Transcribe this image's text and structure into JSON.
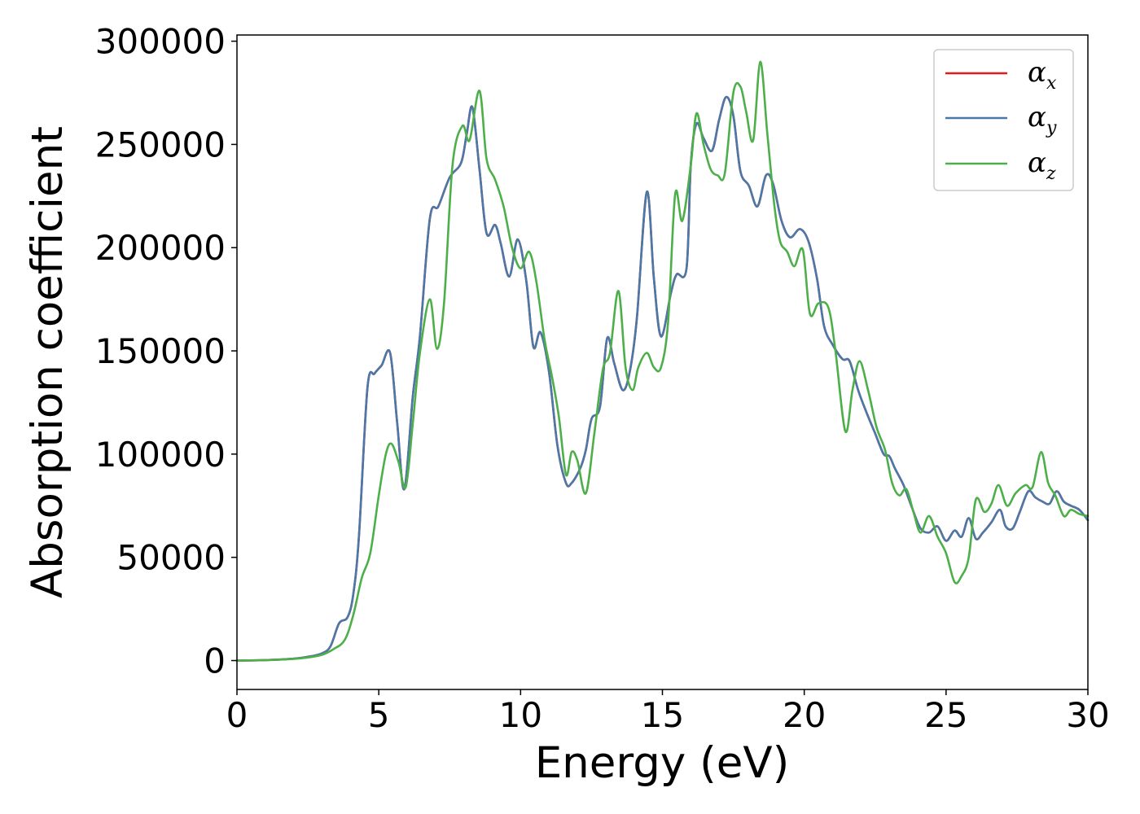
{
  "chart_data": {
    "type": "line",
    "title": "",
    "xlabel": "Energy (eV)",
    "ylabel": "Absorption coefficient",
    "xlim": [
      0,
      30
    ],
    "ylim": [
      -14000,
      303000
    ],
    "xticks": [
      0,
      5,
      10,
      15,
      20,
      25,
      30
    ],
    "xtick_labels": [
      "0",
      "5",
      "10",
      "15",
      "20",
      "25",
      "30"
    ],
    "yticks": [
      0,
      50000,
      100000,
      150000,
      200000,
      250000,
      300000
    ],
    "ytick_labels": [
      "0",
      "50000",
      "100000",
      "150000",
      "200000",
      "250000",
      "300000"
    ],
    "grid": false,
    "legend_position": "top-right",
    "series": [
      {
        "name": "α_x",
        "label_base": "α",
        "label_sub": "x",
        "color": "#e41a1c",
        "x": [
          0,
          1,
          2,
          2.5,
          3,
          3.3,
          3.6,
          3.9,
          4.1,
          4.3,
          4.6,
          4.85,
          5.1,
          5.4,
          5.65,
          5.9,
          6.2,
          6.45,
          6.8,
          7.1,
          7.5,
          7.9,
          8.1,
          8.3,
          8.55,
          8.8,
          9.1,
          9.3,
          9.6,
          9.9,
          10.2,
          10.45,
          10.7,
          11.0,
          11.3,
          11.6,
          11.8,
          12.1,
          12.3,
          12.5,
          12.8,
          13.05,
          13.3,
          13.6,
          13.85,
          14.1,
          14.45,
          14.7,
          14.95,
          15.3,
          15.5,
          15.85,
          16.0,
          16.2,
          16.45,
          16.75,
          17.0,
          17.25,
          17.5,
          17.75,
          18.05,
          18.35,
          18.65,
          18.9,
          19.2,
          19.5,
          19.85,
          20.15,
          20.45,
          20.7,
          21.0,
          21.35,
          21.6,
          21.9,
          22.2,
          22.5,
          22.8,
          23.0,
          23.2,
          23.5,
          23.8,
          24.1,
          24.4,
          24.7,
          25.0,
          25.3,
          25.55,
          25.8,
          26.05,
          26.3,
          26.6,
          26.9,
          27.1,
          27.35,
          27.6,
          27.9,
          28.15,
          28.4,
          28.65,
          28.9,
          29.15,
          29.4,
          29.7,
          30.0
        ],
        "y": [
          0,
          200,
          900,
          1800,
          3500,
          7000,
          18000,
          21000,
          32000,
          60000,
          132000,
          139000,
          143000,
          149000,
          115000,
          83000,
          128000,
          157000,
          214000,
          220000,
          234000,
          241000,
          255000,
          268000,
          238000,
          207000,
          211000,
          202000,
          186000,
          204000,
          184000,
          152000,
          159000,
          140000,
          104000,
          86000,
          86000,
          93000,
          102000,
          117000,
          123000,
          156000,
          144000,
          131000,
          140000,
          166000,
          227000,
          185000,
          157000,
          178000,
          187000,
          190000,
          240000,
          260000,
          253000,
          247000,
          262000,
          273000,
          264000,
          237000,
          230000,
          220000,
          235000,
          231000,
          213000,
          205000,
          209000,
          203000,
          185000,
          162000,
          153000,
          146000,
          145000,
          131000,
          120000,
          110000,
          100000,
          99000,
          93000,
          85000,
          74000,
          64000,
          62000,
          65000,
          58000,
          63000,
          60000,
          69000,
          59000,
          62000,
          67000,
          73000,
          65000,
          64000,
          72000,
          82000,
          79000,
          77000,
          76000,
          82000,
          77000,
          75000,
          73000,
          68000
        ]
      },
      {
        "name": "α_y",
        "label_base": "α",
        "label_sub": "y",
        "color": "#4a78a8",
        "x": [
          0,
          1,
          2,
          2.5,
          3,
          3.3,
          3.6,
          3.9,
          4.1,
          4.3,
          4.6,
          4.85,
          5.1,
          5.4,
          5.65,
          5.9,
          6.2,
          6.45,
          6.8,
          7.1,
          7.5,
          7.9,
          8.1,
          8.3,
          8.55,
          8.8,
          9.1,
          9.3,
          9.6,
          9.9,
          10.2,
          10.45,
          10.7,
          11.0,
          11.3,
          11.6,
          11.8,
          12.1,
          12.3,
          12.5,
          12.8,
          13.05,
          13.3,
          13.6,
          13.85,
          14.1,
          14.45,
          14.7,
          14.95,
          15.3,
          15.5,
          15.85,
          16.0,
          16.2,
          16.45,
          16.75,
          17.0,
          17.25,
          17.5,
          17.75,
          18.05,
          18.35,
          18.65,
          18.9,
          19.2,
          19.5,
          19.85,
          20.15,
          20.45,
          20.7,
          21.0,
          21.35,
          21.6,
          21.9,
          22.2,
          22.5,
          22.8,
          23.0,
          23.2,
          23.5,
          23.8,
          24.1,
          24.4,
          24.7,
          25.0,
          25.3,
          25.55,
          25.8,
          26.05,
          26.3,
          26.6,
          26.9,
          27.1,
          27.35,
          27.6,
          27.9,
          28.15,
          28.4,
          28.65,
          28.9,
          29.15,
          29.4,
          29.7,
          30.0
        ],
        "y": [
          0,
          200,
          900,
          1800,
          3500,
          7000,
          18000,
          21000,
          32000,
          60000,
          132000,
          139000,
          143000,
          149000,
          115000,
          83000,
          128000,
          157000,
          214000,
          220000,
          234000,
          241000,
          255000,
          268000,
          238000,
          207000,
          211000,
          202000,
          186000,
          204000,
          184000,
          152000,
          159000,
          140000,
          104000,
          86000,
          86000,
          93000,
          102000,
          117000,
          123000,
          156000,
          144000,
          131000,
          140000,
          166000,
          227000,
          185000,
          157000,
          178000,
          187000,
          190000,
          240000,
          260000,
          253000,
          247000,
          262000,
          273000,
          264000,
          237000,
          230000,
          220000,
          235000,
          231000,
          213000,
          205000,
          209000,
          203000,
          185000,
          162000,
          153000,
          146000,
          145000,
          131000,
          120000,
          110000,
          100000,
          99000,
          93000,
          85000,
          74000,
          64000,
          62000,
          65000,
          58000,
          63000,
          60000,
          69000,
          59000,
          62000,
          67000,
          73000,
          65000,
          64000,
          72000,
          82000,
          79000,
          77000,
          76000,
          82000,
          77000,
          75000,
          73000,
          68000
        ]
      },
      {
        "name": "α_z",
        "label_base": "α",
        "label_sub": "z",
        "color": "#4daf4a",
        "x": [
          0,
          1,
          2,
          2.5,
          3,
          3.4,
          3.8,
          4.1,
          4.4,
          4.7,
          5.0,
          5.25,
          5.45,
          5.7,
          5.95,
          6.2,
          6.45,
          6.8,
          7.05,
          7.3,
          7.6,
          7.95,
          8.2,
          8.55,
          8.8,
          9.1,
          9.4,
          9.7,
          10.0,
          10.3,
          10.55,
          10.85,
          11.1,
          11.35,
          11.6,
          11.8,
          12.0,
          12.3,
          12.6,
          12.9,
          13.15,
          13.45,
          13.7,
          13.95,
          14.15,
          14.45,
          14.7,
          14.95,
          15.2,
          15.45,
          15.7,
          16.0,
          16.2,
          16.45,
          16.7,
          16.95,
          17.2,
          17.5,
          17.75,
          17.95,
          18.2,
          18.45,
          18.7,
          18.95,
          19.15,
          19.4,
          19.65,
          19.95,
          20.2,
          20.5,
          20.85,
          21.1,
          21.45,
          21.7,
          21.95,
          22.25,
          22.55,
          22.85,
          23.1,
          23.35,
          23.6,
          23.85,
          24.1,
          24.4,
          24.7,
          25.0,
          25.3,
          25.55,
          25.8,
          26.05,
          26.35,
          26.6,
          26.85,
          27.15,
          27.45,
          27.8,
          28.05,
          28.35,
          28.6,
          28.85,
          29.15,
          29.4,
          29.7,
          30.0
        ],
        "y": [
          0,
          200,
          800,
          1500,
          2800,
          5500,
          10000,
          22000,
          40000,
          52000,
          80000,
          100000,
          105000,
          96000,
          84000,
          115000,
          149000,
          175000,
          151000,
          173000,
          240000,
          259000,
          252000,
          276000,
          243000,
          233000,
          220000,
          200000,
          190000,
          198000,
          184000,
          155000,
          138000,
          118000,
          90000,
          101000,
          97000,
          81000,
          110000,
          141000,
          149000,
          179000,
          142000,
          131000,
          142000,
          149000,
          142000,
          142000,
          164000,
          226000,
          213000,
          240000,
          265000,
          250000,
          238000,
          235000,
          236000,
          275000,
          278000,
          266000,
          252000,
          290000,
          255000,
          220000,
          203000,
          198000,
          191000,
          199000,
          168000,
          173000,
          171000,
          150000,
          111000,
          131000,
          145000,
          131000,
          113000,
          102000,
          86000,
          80000,
          83000,
          72000,
          62000,
          70000,
          60000,
          52000,
          38000,
          41000,
          50000,
          78000,
          72000,
          76000,
          85000,
          75000,
          81000,
          85000,
          84000,
          101000,
          86000,
          80000,
          70000,
          73000,
          71000,
          70000
        ]
      }
    ]
  }
}
